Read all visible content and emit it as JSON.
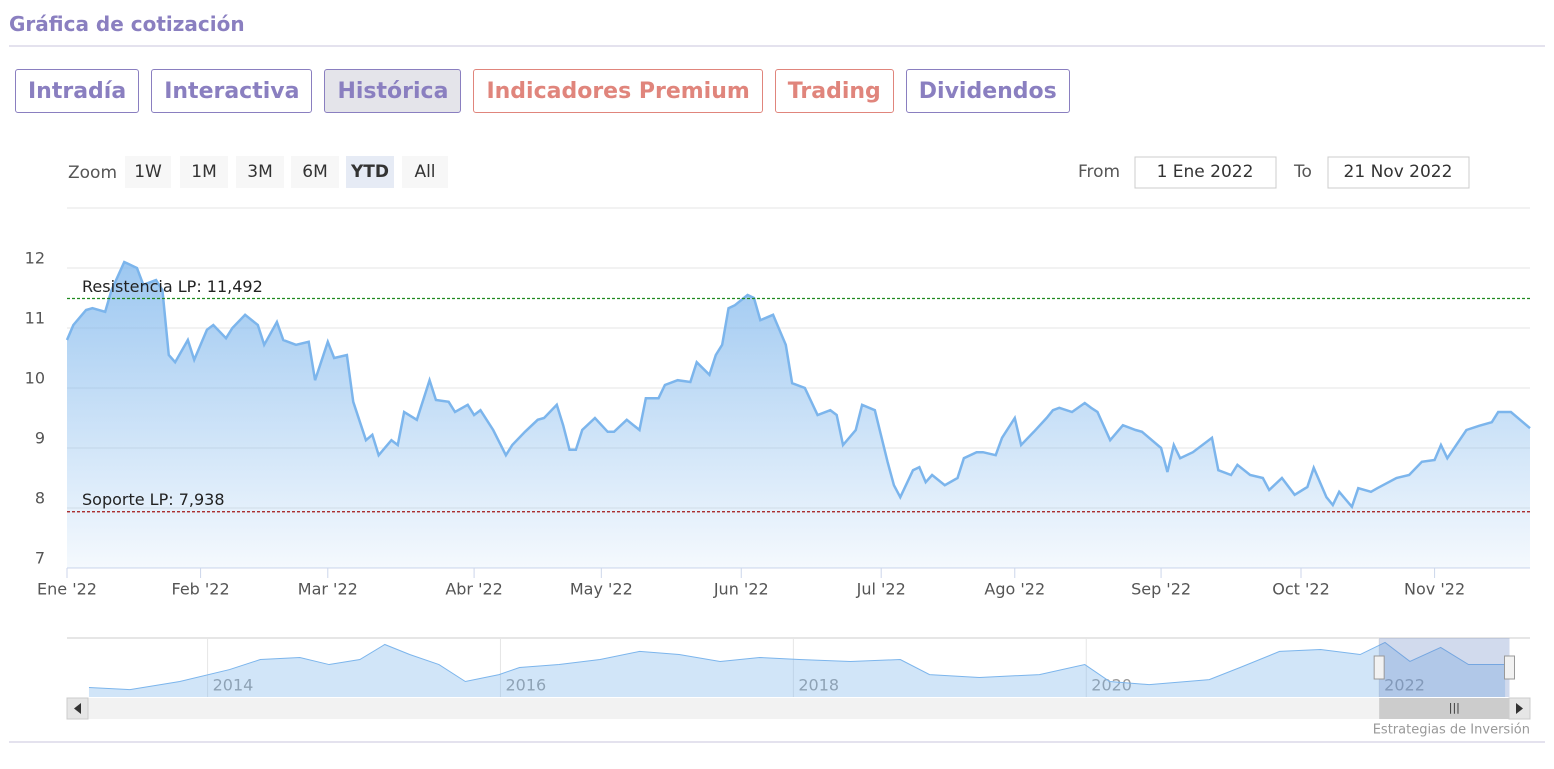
{
  "header": {
    "title": "Gráfica de cotización"
  },
  "tabs": [
    {
      "label": "Intradía",
      "color": "#8a7fc0"
    },
    {
      "label": "Interactiva",
      "color": "#8a7fc0"
    },
    {
      "label": "Histórica",
      "color": "#8a7fc0",
      "active": true
    },
    {
      "label": "Indicadores Premium",
      "color": "#e0857c"
    },
    {
      "label": "Trading",
      "color": "#e0857c"
    },
    {
      "label": "Dividendos",
      "color": "#8a7fc0"
    }
  ],
  "zoom": {
    "label": "Zoom",
    "buttons": [
      {
        "label": "1W"
      },
      {
        "label": "1M"
      },
      {
        "label": "3M"
      },
      {
        "label": "6M"
      },
      {
        "label": "YTD",
        "active": true
      },
      {
        "label": "All"
      }
    ],
    "from_label": "From",
    "from": "1 Ene 2022",
    "to_label": "To",
    "to": "21 Nov 2022"
  },
  "chart_data": {
    "type": "area",
    "color": "#7cb5ec",
    "grid": true,
    "x": [
      0,
      1,
      3,
      4,
      6,
      7,
      9,
      11,
      12,
      14,
      15,
      16,
      17,
      19,
      20,
      22,
      23,
      25,
      26,
      28,
      30,
      31,
      33,
      34,
      36,
      38,
      39,
      41,
      42,
      44,
      45,
      47,
      48,
      49,
      51,
      52,
      53,
      55,
      56,
      57,
      58,
      60,
      61,
      63,
      64,
      65,
      67,
      69,
      70,
      72,
      74,
      75,
      77,
      78,
      79,
      80,
      81,
      83,
      85,
      86,
      88,
      90,
      91,
      93,
      94,
      96,
      98,
      99,
      101,
      102,
      103,
      104,
      105,
      107,
      108,
      109,
      111,
      113,
      114,
      116,
      118,
      120,
      121,
      122,
      124,
      125,
      127,
      129,
      130,
      131,
      133,
      134,
      135,
      136,
      138,
      140,
      141,
      143,
      144,
      146,
      147,
      149,
      150,
      152,
      154,
      155,
      156,
      158,
      160,
      161,
      162,
      164,
      166,
      168,
      169,
      172,
      173,
      174,
      175,
      177,
      180,
      181,
      183,
      184,
      186,
      188,
      189,
      191,
      193,
      195,
      196,
      198,
      199,
      200,
      202,
      203,
      205,
      206,
      209,
      211,
      213,
      215,
      216,
      217,
      220,
      222,
      224,
      225,
      227,
      229,
      230
    ],
    "values": [
      10.8,
      11.05,
      11.3,
      11.33,
      11.27,
      11.63,
      12.1,
      12.0,
      11.72,
      11.8,
      11.63,
      10.55,
      10.43,
      10.8,
      10.47,
      10.97,
      11.05,
      10.83,
      11.0,
      11.22,
      11.05,
      10.72,
      11.1,
      10.8,
      10.72,
      10.77,
      10.13,
      10.77,
      10.5,
      10.55,
      9.77,
      9.13,
      9.22,
      8.88,
      9.13,
      9.05,
      9.6,
      9.47,
      9.8,
      10.13,
      9.8,
      9.77,
      9.6,
      9.72,
      9.55,
      9.63,
      9.3,
      8.88,
      9.05,
      9.27,
      9.47,
      9.5,
      9.72,
      9.38,
      8.97,
      8.97,
      9.3,
      9.5,
      9.27,
      9.27,
      9.47,
      9.3,
      9.83,
      9.83,
      10.05,
      10.13,
      10.1,
      10.43,
      10.22,
      10.55,
      10.72,
      11.33,
      11.38,
      11.55,
      11.5,
      11.13,
      11.22,
      10.72,
      10.08,
      10.0,
      9.55,
      9.63,
      9.55,
      9.05,
      9.3,
      9.72,
      9.63,
      8.77,
      8.38,
      8.18,
      8.63,
      8.68,
      8.43,
      8.55,
      8.38,
      8.5,
      8.83,
      8.93,
      8.93,
      8.88,
      9.17,
      9.5,
      9.05,
      9.27,
      9.5,
      9.63,
      9.67,
      9.6,
      9.75,
      9.67,
      9.6,
      9.13,
      9.38,
      9.3,
      9.27,
      9.0,
      8.6,
      9.05,
      8.83,
      8.93,
      9.17,
      8.63,
      8.55,
      8.72,
      8.55,
      8.5,
      8.3,
      8.5,
      8.22,
      8.35,
      8.67,
      8.18,
      8.05,
      8.27,
      8.02,
      8.33,
      8.27,
      8.33,
      8.5,
      8.55,
      8.77,
      8.8,
      9.05,
      8.83,
      9.3,
      9.37,
      9.43,
      9.6,
      9.6,
      9.42,
      9.33
    ],
    "xlim": [
      0,
      230
    ],
    "xticks": [
      {
        "value": 0,
        "label": "Ene '22"
      },
      {
        "value": 21,
        "label": "Feb '22"
      },
      {
        "value": 41,
        "label": "Mar '22"
      },
      {
        "value": 64,
        "label": "Abr '22"
      },
      {
        "value": 84,
        "label": "May '22"
      },
      {
        "value": 106,
        "label": "Jun '22"
      },
      {
        "value": 128,
        "label": "Jul '22"
      },
      {
        "value": 149,
        "label": "Ago '22"
      },
      {
        "value": 172,
        "label": "Sep '22"
      },
      {
        "value": 194,
        "label": "Oct '22"
      },
      {
        "value": 215,
        "label": "Nov '22"
      }
    ],
    "ylim": [
      7,
      13
    ],
    "yticks": [
      7,
      8,
      9,
      10,
      11,
      12
    ],
    "plot_lines": [
      {
        "value": 11.492,
        "label": "Resistencia LP: 11,492",
        "color": "#1f8a1f"
      },
      {
        "value": 7.938,
        "label": "Soporte LP: 7,938",
        "color": "#a31515"
      }
    ],
    "navigator": {
      "x": [
        2013.19,
        2013.47,
        2013.81,
        2014.15,
        2014.36,
        2014.63,
        2014.83,
        2015.04,
        2015.21,
        2015.38,
        2015.58,
        2015.76,
        2015.99,
        2016.13,
        2016.4,
        2016.68,
        2016.95,
        2017.22,
        2017.5,
        2017.77,
        2018.04,
        2018.39,
        2018.73,
        2018.93,
        2019.27,
        2019.68,
        2019.99,
        2020.16,
        2020.43,
        2020.84,
        2021.05,
        2021.32,
        2021.6,
        2021.87,
        2022.04,
        2022.21,
        2022.42,
        2022.61,
        2022.86
      ],
      "values": [
        9.04,
        8.9,
        9.45,
        10.26,
        10.94,
        11.08,
        10.6,
        10.94,
        11.96,
        11.28,
        10.6,
        9.45,
        9.92,
        10.4,
        10.6,
        10.94,
        11.49,
        11.28,
        10.81,
        11.08,
        10.94,
        10.81,
        10.94,
        9.92,
        9.72,
        9.92,
        10.6,
        9.45,
        9.24,
        9.58,
        10.4,
        11.49,
        11.62,
        11.28,
        12.1,
        10.81,
        11.76,
        10.6,
        10.6
      ],
      "xlim": [
        2013.04,
        2023.03
      ],
      "ylim": [
        8.4,
        12.4
      ],
      "xticks": [
        2014,
        2016,
        2018,
        2020,
        2022
      ],
      "selected": [
        2022,
        2022.89
      ]
    },
    "credits": "Estrategias de Inversión"
  }
}
